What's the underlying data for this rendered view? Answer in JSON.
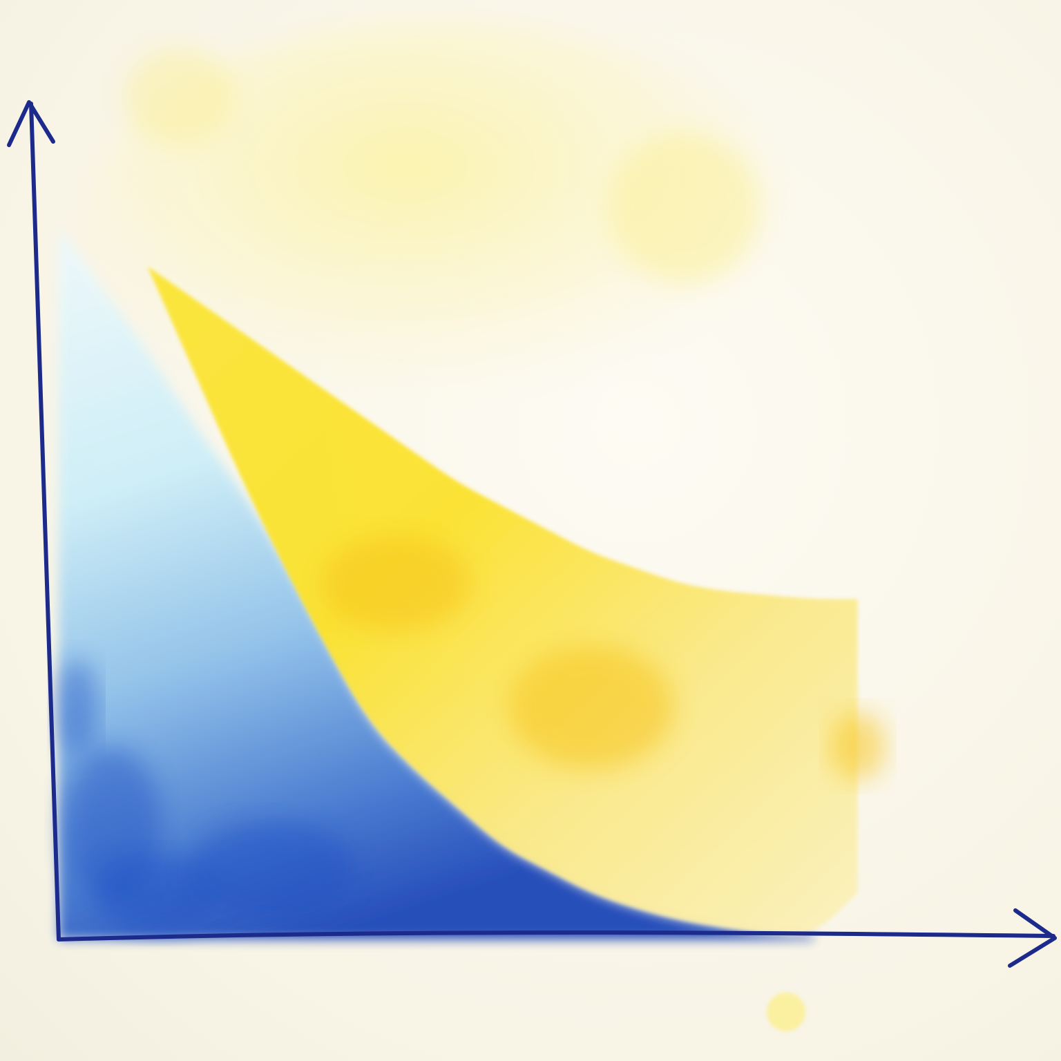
{
  "chart_data": {
    "type": "area",
    "style": "watercolor",
    "title": "",
    "xlabel": "",
    "ylabel": "",
    "xlim": [
      0,
      10
    ],
    "ylim": [
      0,
      10
    ],
    "grid": false,
    "legend": "none",
    "series": [
      {
        "color": "#1f4fc4",
        "fill_light": "#cfeff7",
        "x": [
          0.0,
          0.5,
          1.0,
          1.5,
          2.0,
          2.5,
          3.0,
          3.5,
          4.0,
          4.5,
          5.0,
          5.5,
          6.0,
          6.5,
          7.0,
          7.5,
          8.0,
          8.5
        ],
        "y": [
          9.2,
          8.4,
          7.6,
          6.7,
          5.9,
          5.0,
          3.9,
          2.8,
          2.2,
          1.7,
          1.2,
          0.9,
          0.6,
          0.4,
          0.25,
          0.15,
          0.08,
          0.05
        ]
      },
      {
        "color": "#f7dc2a",
        "fill_light": "#fbf0b4",
        "x": [
          1.0,
          1.5,
          2.0,
          2.5,
          3.0,
          3.5,
          4.0,
          4.5,
          5.0,
          5.5,
          6.0,
          6.5,
          7.0,
          7.5,
          8.0,
          8.5,
          9.0
        ],
        "y_lower": [
          8.7,
          7.4,
          6.1,
          4.9,
          3.8,
          2.8,
          2.2,
          1.7,
          1.2,
          0.9,
          0.6,
          0.4,
          0.25,
          0.15,
          0.08,
          0.05,
          0.6
        ],
        "y_upper": [
          8.7,
          8.3,
          7.9,
          7.5,
          7.1,
          6.7,
          6.3,
          5.9,
          5.6,
          5.3,
          5.0,
          4.8,
          4.6,
          4.5,
          4.45,
          4.4,
          4.4
        ]
      }
    ],
    "axis_color": "#1c2a8c"
  }
}
